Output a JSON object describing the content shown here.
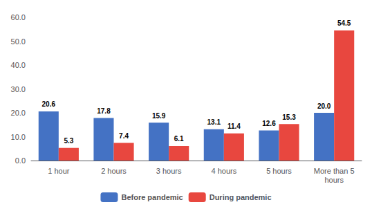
{
  "chart_data": {
    "type": "bar",
    "categories": [
      "1 hour",
      "2 hours",
      "3 hours",
      "4 hours",
      "5 hours",
      "More than 5\nhours"
    ],
    "series": [
      {
        "name": "Before pandemic",
        "color": "#4472C4",
        "values": [
          20.6,
          17.8,
          15.9,
          13.1,
          12.6,
          20.0
        ],
        "value_labels": [
          "20.6",
          "17.8",
          "15.9",
          "13.1",
          "12.6",
          "20.0"
        ]
      },
      {
        "name": "During pandemic",
        "color": "#E8473F",
        "values": [
          5.3,
          7.4,
          6.1,
          11.4,
          15.3,
          54.5
        ],
        "value_labels": [
          "5.3",
          "7.4",
          "6.1",
          "11.4",
          "15.3",
          "54.5"
        ]
      }
    ],
    "ylim": [
      0,
      60
    ],
    "yticks": [
      {
        "value": 0,
        "label": "0.0"
      },
      {
        "value": 10,
        "label": "10.0"
      },
      {
        "value": 20,
        "label": "20.0"
      },
      {
        "value": 30,
        "label": "30.0"
      },
      {
        "value": 40,
        "label": "40.0"
      },
      {
        "value": 50,
        "label": "50.0"
      },
      {
        "value": 60,
        "label": "60.0"
      }
    ],
    "grid": false,
    "legend": "bottom",
    "data_labels": true
  }
}
